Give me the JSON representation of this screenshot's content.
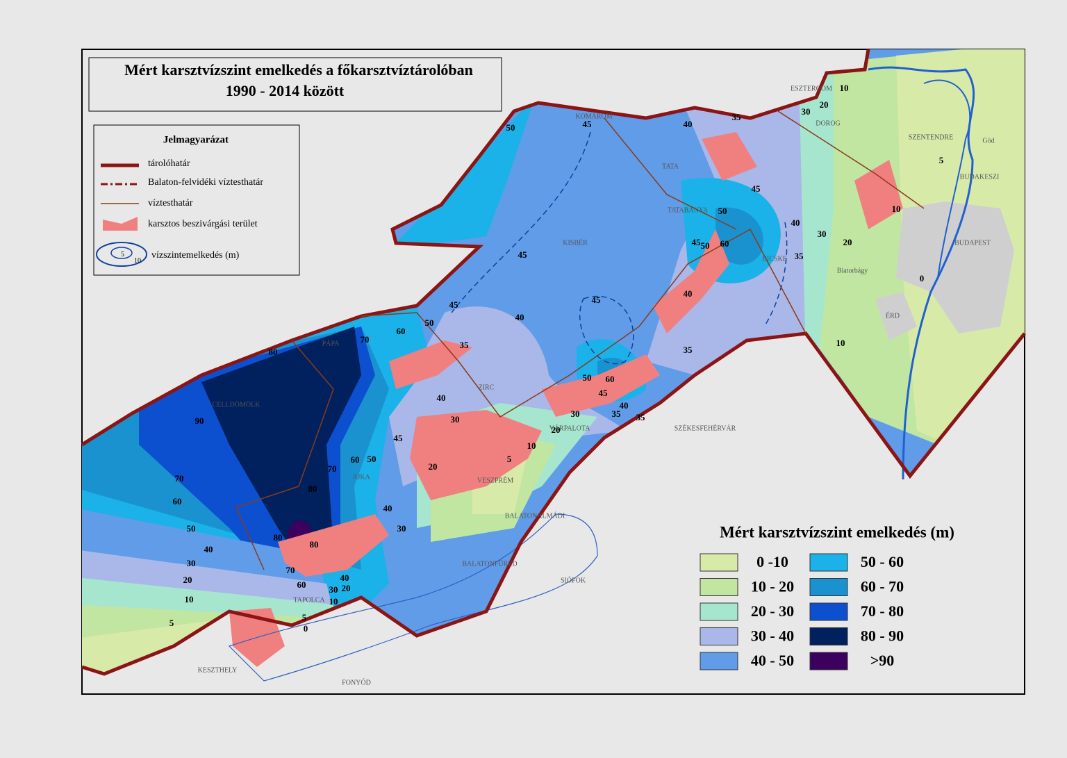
{
  "title": {
    "line1": "Mért karsztvízszint emelkedés a főkarsztvíztárolóban",
    "line2": "1990 - 2014 között"
  },
  "legend": {
    "heading": "Jelmagyarázat",
    "items": [
      "tárolóhatár",
      "Balaton-felvidéki víztesthatár",
      "víztesthatár",
      "karsztos beszivárgási terület",
      "vízszintemelkedés (m)"
    ],
    "icon_labels": [
      5,
      10
    ]
  },
  "color_legend": {
    "title": "Mért karsztvízszint emelkedés (m)",
    "classes": [
      {
        "label": "0 -10",
        "color": "#d8eaa8"
      },
      {
        "label": "10 - 20",
        "color": "#c0e6a2"
      },
      {
        "label": "20 - 30",
        "color": "#a6e6cf"
      },
      {
        "label": "30 - 40",
        "color": "#a9b8e8"
      },
      {
        "label": "40 - 50",
        "color": "#609ce8"
      },
      {
        "label": "50 - 60",
        "color": "#1ab2e8"
      },
      {
        "label": "60 - 70",
        "color": "#1a92d0"
      },
      {
        "label": "70 - 80",
        "color": "#0c50d0"
      },
      {
        "label": "80 - 90",
        "color": "#00205e"
      },
      {
        "label": ">90",
        "color": "#3c005e"
      }
    ]
  },
  "places": [
    "KOMÁROM",
    "TATA",
    "TATABÁNYA",
    "KISBÉR",
    "ESZTERGOM",
    "DOROG",
    "SZENTENDRE",
    "Göd",
    "BUDAKESZI",
    "BUDAPEST",
    "Biatorbágy",
    "ÉRD",
    "BICSKE",
    "ZIRC",
    "VÁRPALOTA",
    "SZÉKESFEHÉRVÁR",
    "VESZPRÉM",
    "AJKA",
    "PÁPA",
    "CELLDÖMÖLK",
    "BALATONALMÁDI",
    "BALATONFÜRED",
    "SIÓFOK",
    "TAPOLCA",
    "KESZTHELY",
    "FONYÓD"
  ],
  "contour_labels": [
    50,
    45,
    40,
    35,
    10,
    20,
    30,
    45,
    50,
    40,
    30,
    20,
    45,
    50,
    60,
    35,
    10,
    5,
    0,
    10,
    45,
    45,
    40,
    45,
    40,
    35,
    50,
    60,
    70,
    80,
    35,
    40,
    30,
    45,
    60,
    50,
    70,
    80,
    90,
    70,
    60,
    50,
    40,
    30,
    20,
    10,
    5,
    20,
    5,
    10,
    20,
    30,
    40,
    30,
    50,
    60,
    45,
    40,
    35,
    35,
    0,
    5,
    10,
    20,
    30,
    40,
    60,
    70,
    80,
    80
  ]
}
